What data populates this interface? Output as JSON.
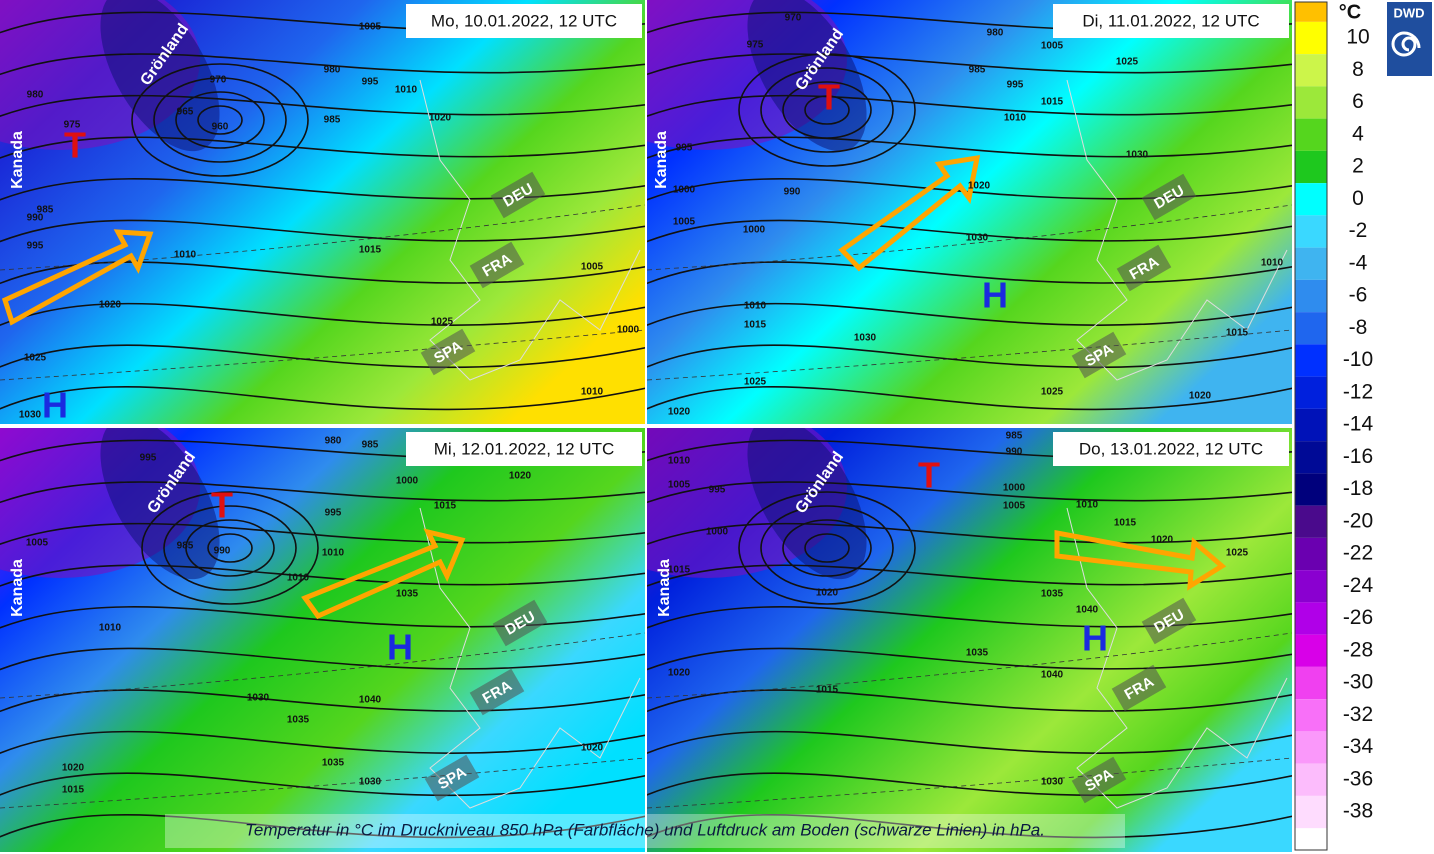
{
  "panels": [
    {
      "date": "Mo, 10.01.2022, 12 UTC",
      "regions": [
        "Grönland",
        "Kanada"
      ],
      "lows": [
        "T"
      ],
      "highs": [
        "H"
      ],
      "countries": [
        "DEU",
        "FRA",
        "SPA"
      ],
      "isobars": [
        960,
        965,
        970,
        980,
        985,
        995,
        1005,
        1010,
        1020,
        1010,
        1020,
        1015,
        1025,
        1005,
        1000,
        1010,
        1025,
        1030,
        985,
        990,
        995,
        975,
        980
      ]
    },
    {
      "date": "Di, 11.01.2022, 12 UTC",
      "regions": [
        "Grönland",
        "Kanada"
      ],
      "lows": [
        "T"
      ],
      "highs": [
        "H"
      ],
      "countries": [
        "DEU",
        "FRA",
        "SPA"
      ],
      "isobars": [
        970,
        975,
        980,
        985,
        990,
        995,
        1000,
        1005,
        1010,
        1015,
        1020,
        1025,
        1030,
        1030,
        1010,
        1015,
        1030,
        1025,
        1020,
        1025,
        1020,
        1015,
        1010,
        1005,
        1000,
        995
      ]
    },
    {
      "date": "Mi, 12.01.2022, 12 UTC",
      "regions": [
        "Grönland",
        "Kanada"
      ],
      "lows": [
        "T"
      ],
      "highs": [
        "H"
      ],
      "countries": [
        "DEU",
        "FRA",
        "SPA"
      ],
      "isobars": [
        980,
        985,
        995,
        985,
        990,
        995,
        1000,
        1005,
        1010,
        1010,
        1010,
        1015,
        1020,
        1035,
        1030,
        1035,
        1040,
        1035,
        1030,
        1020,
        1020,
        1015
      ]
    },
    {
      "date": "Do, 13.01.2022, 12 UTC",
      "regions": [
        "Grönland",
        "Kanada"
      ],
      "lows": [
        "T"
      ],
      "highs": [
        "H"
      ],
      "countries": [
        "DEU",
        "FRA",
        "SPA"
      ],
      "isobars": [
        985,
        990,
        995,
        1000,
        1000,
        1005,
        1010,
        1005,
        1015,
        1020,
        1010,
        1015,
        1020,
        1025,
        1035,
        1040,
        1035,
        1040,
        1020,
        1015,
        1030
      ]
    }
  ],
  "legend": {
    "unit": "°C",
    "ticks": [
      10,
      8,
      6,
      4,
      2,
      0,
      -2,
      -4,
      -6,
      -8,
      -10,
      -12,
      -14,
      -16,
      -18,
      -20,
      -22,
      -24,
      -26,
      -28,
      -30,
      -32,
      -34,
      -36,
      -38
    ],
    "colors": [
      "#ffc000",
      "#ffff00",
      "#ccf54a",
      "#9ce83a",
      "#55d61e",
      "#1ec81e",
      "#00ffff",
      "#3ad8ff",
      "#3fb4f0",
      "#2f8cee",
      "#1f66ee",
      "#0030ff",
      "#0020dd",
      "#0012b8",
      "#000a96",
      "#00007c",
      "#4a0a8c",
      "#6a00b0",
      "#8a00d0",
      "#b000e8",
      "#d800e8",
      "#f040f0",
      "#f870f8",
      "#fa98fa",
      "#fcbcfc",
      "#fedcfe"
    ]
  },
  "logo": "DWD",
  "caption": "Temperatur in °C im Druckniveau 850 hPa (Farbfläche) und Luftdruck am Boden (schwarze Linien) in hPa."
}
